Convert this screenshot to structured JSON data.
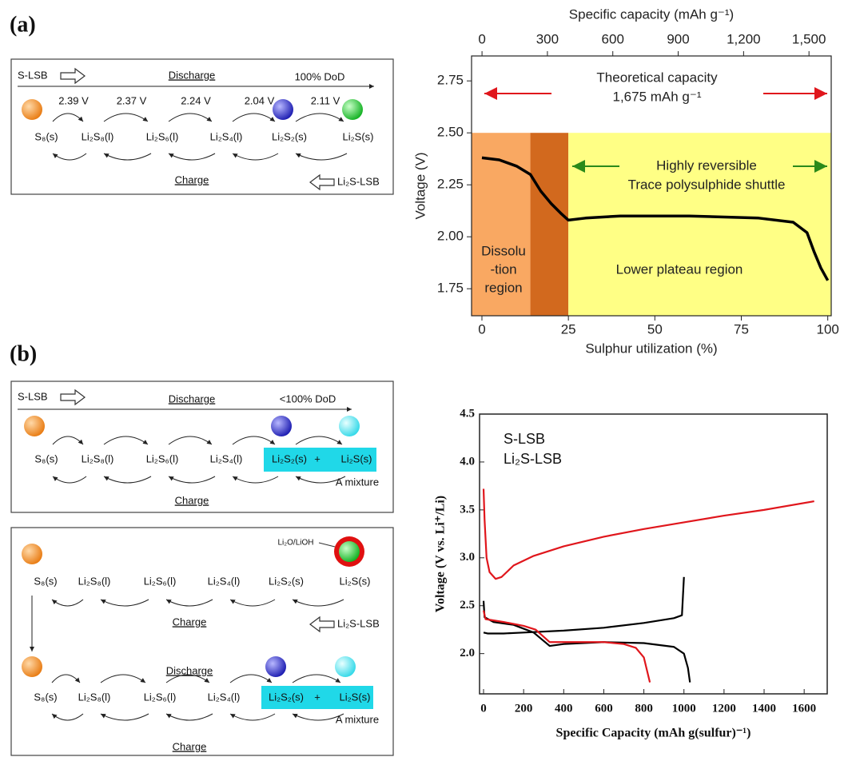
{
  "panel_labels": [
    "(a)",
    "(b)"
  ],
  "diagrams": [
    {
      "battery": "S-LSB",
      "process": "Discharge",
      "depth": "100% DoD",
      "voltages": [
        "2.39 V",
        "2.37 V",
        "2.24 V",
        "2.04 V",
        "2.11 V"
      ],
      "species": [
        "S₈(s)",
        "Li₂S₈(l)",
        "Li₂S₆(l)",
        "Li₂S₄(l)",
        "Li₂S₂(s)",
        "Li₂S(s)"
      ],
      "reverse": "Charge",
      "reverse_battery": "Li₂S-LSB"
    },
    {
      "battery": "S-LSB",
      "process": "Discharge",
      "depth": "<100% DoD",
      "species": [
        "S₈(s)",
        "Li₂S₈(l)",
        "Li₂S₆(l)",
        "Li₂S₄(l)",
        "Li₂S₂(s)",
        "Li₂S(s)"
      ],
      "plus": "+",
      "mixture": "A mixture",
      "reverse": "Charge"
    },
    {
      "coating": "Li₂O/LiOH",
      "species": [
        "S₈(s)",
        "Li₂S₈(l)",
        "Li₂S₆(l)",
        "Li₂S₄(l)",
        "Li₂S₂(s)",
        "Li₂S(s)"
      ],
      "reverse": "Charge",
      "reverse_battery": "Li₂S-LSB",
      "species_2": [
        "S₈(s)",
        "Li₂S₈(l)",
        "Li₂S₆(l)",
        "Li₂S₄(l)",
        "Li₂S₂(s)",
        "Li₂S(s)"
      ],
      "process": "Discharge",
      "plus": "+",
      "mixture": "A mixture",
      "reverse_2": "Charge"
    }
  ],
  "chart_data": [
    {
      "type": "line",
      "xlabel": "Sulphur utilization (%)",
      "ylabel": "Voltage (V)",
      "x2label": "Specific capacity (mAh g⁻¹)",
      "xlim": [
        -3,
        101
      ],
      "xticks": [
        0,
        25,
        50,
        75,
        100
      ],
      "x2lim": [
        -48,
        1602
      ],
      "x2ticks": [
        0,
        300,
        600,
        900,
        {
          "value": 1200,
          "label": "1,200"
        },
        {
          "value": 1500,
          "label": "1,500"
        }
      ],
      "ylim": [
        1.62,
        2.87
      ],
      "yticks": [
        1.75,
        {
          "value": 2.0,
          "label": "2.00"
        },
        2.25,
        {
          "value": 2.5,
          "label": "2.50"
        },
        2.75
      ],
      "regions": [
        {
          "x": [
            -3,
            14
          ],
          "color": "#f9a862"
        },
        {
          "x": [
            14,
            25
          ],
          "color": "#d2691e"
        },
        {
          "x": [
            25,
            101
          ],
          "color": "#ffff85"
        }
      ],
      "region_top": 2.5,
      "series": [
        {
          "color": "#000000",
          "x": [
            0,
            5,
            10,
            14,
            17,
            20,
            23,
            25,
            30,
            40,
            60,
            80,
            90,
            94,
            96,
            98,
            100
          ],
          "values": [
            2.38,
            2.37,
            2.34,
            2.3,
            2.22,
            2.16,
            2.11,
            2.08,
            2.09,
            2.1,
            2.1,
            2.09,
            2.07,
            2.02,
            1.93,
            1.85,
            1.79
          ]
        }
      ],
      "annotations": {
        "theoretical": [
          "Theoretical capacity",
          "1,675 mAh g⁻¹"
        ],
        "reversible": [
          "Highly reversible",
          "Trace polysulphide shuttle"
        ],
        "dissolution": [
          "Dissolu",
          "-tion",
          "region"
        ],
        "plateau": "Lower plateau region"
      }
    },
    {
      "type": "line",
      "xlabel": "Specific Capacity (mAh g(sulfur)⁻¹)",
      "ylabel": "Voltage (V vs. Li⁺/Li)",
      "xlim": [
        -20,
        1715
      ],
      "xticks": [
        0,
        200,
        400,
        600,
        800,
        1000,
        1200,
        1400,
        1600
      ],
      "ylim": [
        1.58,
        4.5
      ],
      "yticks": [
        {
          "value": 2.0,
          "label": "2.0"
        },
        2.5,
        {
          "value": 3.0,
          "label": "3.0"
        },
        3.5,
        {
          "value": 4.0,
          "label": "4.0"
        },
        4.5
      ],
      "series": [
        {
          "name": "S-LSB",
          "color": "#000000",
          "x": [
            0,
            20,
            100,
            200,
            400,
            600,
            800,
            950,
            990,
            995,
            1000,
            null,
            0,
            5,
            50,
            150,
            250,
            330,
            400,
            600,
            800,
            950,
            1000,
            1020,
            1030
          ],
          "values": [
            2.22,
            2.21,
            2.21,
            2.22,
            2.24,
            2.27,
            2.32,
            2.37,
            2.4,
            2.6,
            2.8,
            null,
            2.55,
            2.38,
            2.33,
            2.3,
            2.22,
            2.08,
            2.1,
            2.12,
            2.11,
            2.07,
            2.0,
            1.85,
            1.7
          ]
        },
        {
          "name": "Li₂S-LSB",
          "color": "#e0161c",
          "x": [
            0,
            5,
            15,
            30,
            60,
            90,
            150,
            250,
            400,
            600,
            800,
            1000,
            1200,
            1400,
            1650,
            null,
            0,
            10,
            100,
            200,
            260,
            330,
            400,
            600,
            700,
            760,
            800,
            830
          ],
          "values": [
            3.72,
            3.4,
            3.0,
            2.85,
            2.78,
            2.8,
            2.92,
            3.02,
            3.12,
            3.22,
            3.3,
            3.37,
            3.44,
            3.5,
            3.59,
            null,
            2.45,
            2.36,
            2.33,
            2.29,
            2.25,
            2.12,
            2.12,
            2.12,
            2.1,
            2.06,
            1.96,
            1.7
          ]
        }
      ]
    }
  ]
}
